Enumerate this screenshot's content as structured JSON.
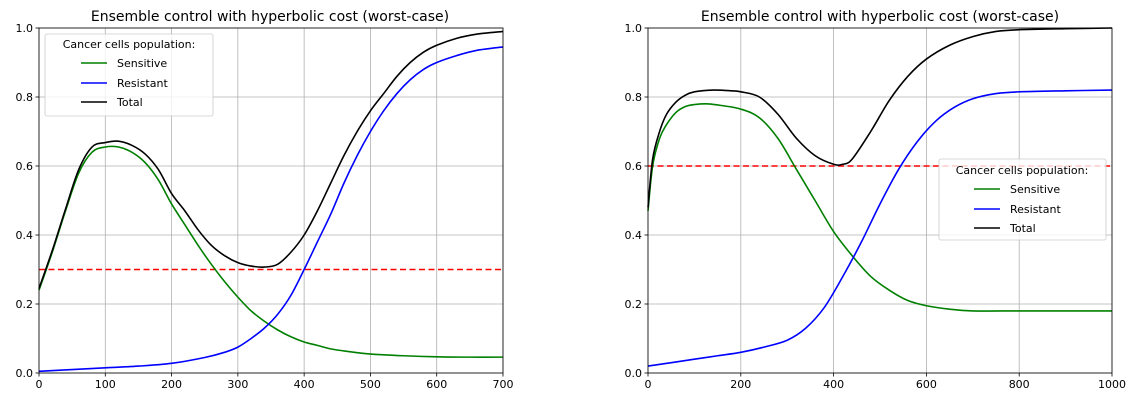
{
  "chart_data": [
    {
      "type": "line",
      "title": "Ensemble control with hyperbolic cost (worst-case)",
      "xlabel": "",
      "ylabel": "",
      "xlim": [
        0,
        700
      ],
      "ylim": [
        0,
        1.0
      ],
      "xticks": [
        0,
        100,
        200,
        300,
        400,
        500,
        600,
        700
      ],
      "yticks": [
        0.0,
        0.2,
        0.4,
        0.6,
        0.8,
        1.0
      ],
      "grid": true,
      "legend": {
        "title": "Cancer cells population:",
        "placement": "upper-left"
      },
      "threshold": {
        "y": 0.3,
        "color": "#ff0000",
        "style": "dashed"
      },
      "series": [
        {
          "name": "Sensitive",
          "color": "#008000",
          "x": [
            0,
            20,
            40,
            60,
            80,
            100,
            120,
            140,
            160,
            180,
            200,
            220,
            240,
            260,
            280,
            300,
            320,
            340,
            360,
            380,
            400,
            420,
            440,
            460,
            480,
            500,
            550,
            600,
            650,
            700
          ],
          "y": [
            0.24,
            0.35,
            0.47,
            0.58,
            0.64,
            0.655,
            0.655,
            0.64,
            0.61,
            0.56,
            0.49,
            0.43,
            0.37,
            0.315,
            0.265,
            0.22,
            0.18,
            0.15,
            0.125,
            0.105,
            0.09,
            0.08,
            0.07,
            0.064,
            0.059,
            0.055,
            0.05,
            0.047,
            0.046,
            0.046
          ]
        },
        {
          "name": "Resistant",
          "color": "#0000ff",
          "x": [
            0,
            50,
            100,
            150,
            200,
            250,
            280,
            300,
            320,
            340,
            360,
            380,
            400,
            420,
            440,
            460,
            480,
            500,
            520,
            540,
            560,
            580,
            600,
            630,
            660,
            700
          ],
          "y": [
            0.005,
            0.01,
            0.015,
            0.02,
            0.028,
            0.045,
            0.06,
            0.075,
            0.1,
            0.13,
            0.17,
            0.225,
            0.3,
            0.38,
            0.46,
            0.55,
            0.63,
            0.7,
            0.76,
            0.81,
            0.85,
            0.88,
            0.9,
            0.92,
            0.935,
            0.945
          ]
        },
        {
          "name": "Total",
          "color": "#000000",
          "x": [
            0,
            20,
            40,
            60,
            80,
            100,
            120,
            140,
            160,
            180,
            200,
            220,
            240,
            260,
            280,
            300,
            320,
            340,
            360,
            380,
            400,
            420,
            440,
            460,
            480,
            500,
            520,
            540,
            560,
            580,
            600,
            630,
            660,
            700
          ],
          "y": [
            0.245,
            0.355,
            0.475,
            0.59,
            0.655,
            0.668,
            0.672,
            0.66,
            0.635,
            0.59,
            0.52,
            0.47,
            0.415,
            0.37,
            0.34,
            0.32,
            0.31,
            0.307,
            0.315,
            0.35,
            0.4,
            0.47,
            0.55,
            0.63,
            0.7,
            0.76,
            0.81,
            0.86,
            0.9,
            0.93,
            0.95,
            0.97,
            0.982,
            0.99
          ]
        }
      ]
    },
    {
      "type": "line",
      "title": "Ensemble control with hyperbolic cost (worst-case)",
      "xlabel": "",
      "ylabel": "",
      "xlim": [
        0,
        1000
      ],
      "ylim": [
        0,
        1.0
      ],
      "xticks": [
        0,
        200,
        400,
        600,
        800,
        1000
      ],
      "yticks": [
        0.0,
        0.2,
        0.4,
        0.6,
        0.8,
        1.0
      ],
      "grid": true,
      "legend": {
        "title": "Cancer cells population:",
        "placement": "center-right"
      },
      "threshold": {
        "y": 0.6,
        "color": "#ff0000",
        "style": "dashed"
      },
      "series": [
        {
          "name": "Sensitive",
          "color": "#008000",
          "x": [
            0,
            10,
            25,
            40,
            60,
            80,
            100,
            130,
            160,
            200,
            240,
            280,
            320,
            360,
            400,
            440,
            480,
            520,
            560,
            600,
            650,
            700,
            800,
            900,
            1000
          ],
          "y": [
            0.47,
            0.6,
            0.68,
            0.72,
            0.755,
            0.772,
            0.778,
            0.78,
            0.775,
            0.765,
            0.74,
            0.68,
            0.59,
            0.5,
            0.41,
            0.34,
            0.28,
            0.24,
            0.21,
            0.195,
            0.185,
            0.18,
            0.18,
            0.18,
            0.18
          ]
        },
        {
          "name": "Resistant",
          "color": "#0000ff",
          "x": [
            0,
            50,
            100,
            150,
            200,
            250,
            300,
            340,
            380,
            420,
            460,
            500,
            540,
            580,
            620,
            660,
            700,
            750,
            800,
            900,
            1000
          ],
          "y": [
            0.02,
            0.03,
            0.04,
            0.05,
            0.06,
            0.075,
            0.095,
            0.13,
            0.19,
            0.28,
            0.38,
            0.49,
            0.59,
            0.67,
            0.73,
            0.77,
            0.795,
            0.81,
            0.815,
            0.818,
            0.82
          ]
        },
        {
          "name": "Total",
          "color": "#000000",
          "x": [
            0,
            10,
            25,
            40,
            60,
            80,
            100,
            140,
            180,
            200,
            240,
            280,
            320,
            360,
            400,
            420,
            440,
            480,
            520,
            560,
            600,
            650,
            700,
            750,
            800,
            900,
            1000
          ],
          "y": [
            0.48,
            0.62,
            0.7,
            0.75,
            0.785,
            0.805,
            0.815,
            0.82,
            0.818,
            0.815,
            0.8,
            0.75,
            0.68,
            0.63,
            0.605,
            0.605,
            0.62,
            0.7,
            0.79,
            0.86,
            0.91,
            0.95,
            0.975,
            0.99,
            0.995,
            0.998,
            1.0
          ]
        }
      ]
    }
  ]
}
